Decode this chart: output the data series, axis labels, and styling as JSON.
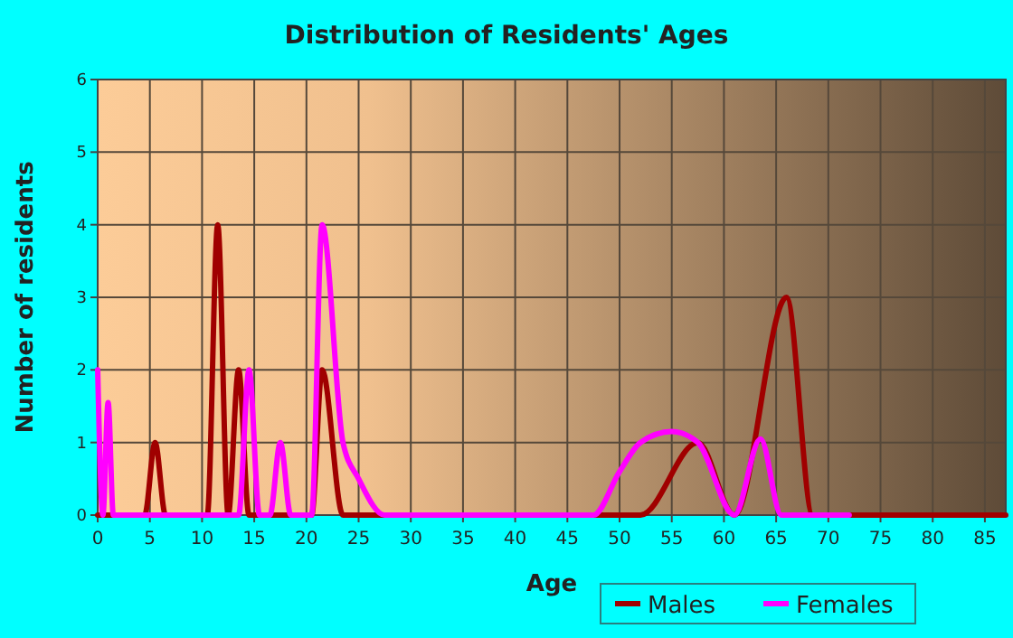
{
  "chart_data": {
    "type": "line",
    "title": "Distribution of Residents' Ages",
    "xlabel": "Age",
    "ylabel": "Number of residents",
    "xlim": [
      0,
      87
    ],
    "xticks": [
      0,
      5,
      10,
      15,
      20,
      25,
      30,
      35,
      40,
      45,
      50,
      55,
      60,
      65,
      70,
      75,
      80,
      85
    ],
    "ylim": [
      0,
      6
    ],
    "yticks": [
      0,
      1,
      2,
      3,
      4,
      5,
      6
    ],
    "grid": true,
    "legend": "bottom right",
    "marker": "none",
    "line_style": "solid",
    "series": [
      {
        "name": "Males",
        "color": "#a00000",
        "x": [
          0,
          4.5,
          5.5,
          6.5,
          10.5,
          11.5,
          12.5,
          13.5,
          14.5,
          20.5,
          21.5,
          23.5,
          52,
          57.5,
          61,
          66,
          68.5,
          87
        ],
        "values": [
          0,
          0,
          1,
          0,
          0,
          4,
          0,
          2,
          0,
          0,
          2,
          0,
          0,
          1,
          0,
          3,
          0,
          0
        ]
      },
      {
        "name": "Females",
        "color": "#ff00ff",
        "x": [
          0,
          0.5,
          1,
          1.5,
          13.5,
          14.5,
          15.5,
          16.5,
          17.5,
          18.5,
          20.5,
          21.5,
          23.5,
          25,
          27.5,
          47.5,
          50,
          52,
          55,
          57.5,
          61,
          63.5,
          65.5,
          72
        ],
        "values": [
          2,
          0,
          1.55,
          0,
          0,
          2,
          0,
          0,
          1,
          0,
          0,
          4,
          1,
          0.5,
          0,
          0,
          0.6,
          1,
          1.15,
          1,
          0,
          1.05,
          0,
          0
        ]
      }
    ]
  }
}
